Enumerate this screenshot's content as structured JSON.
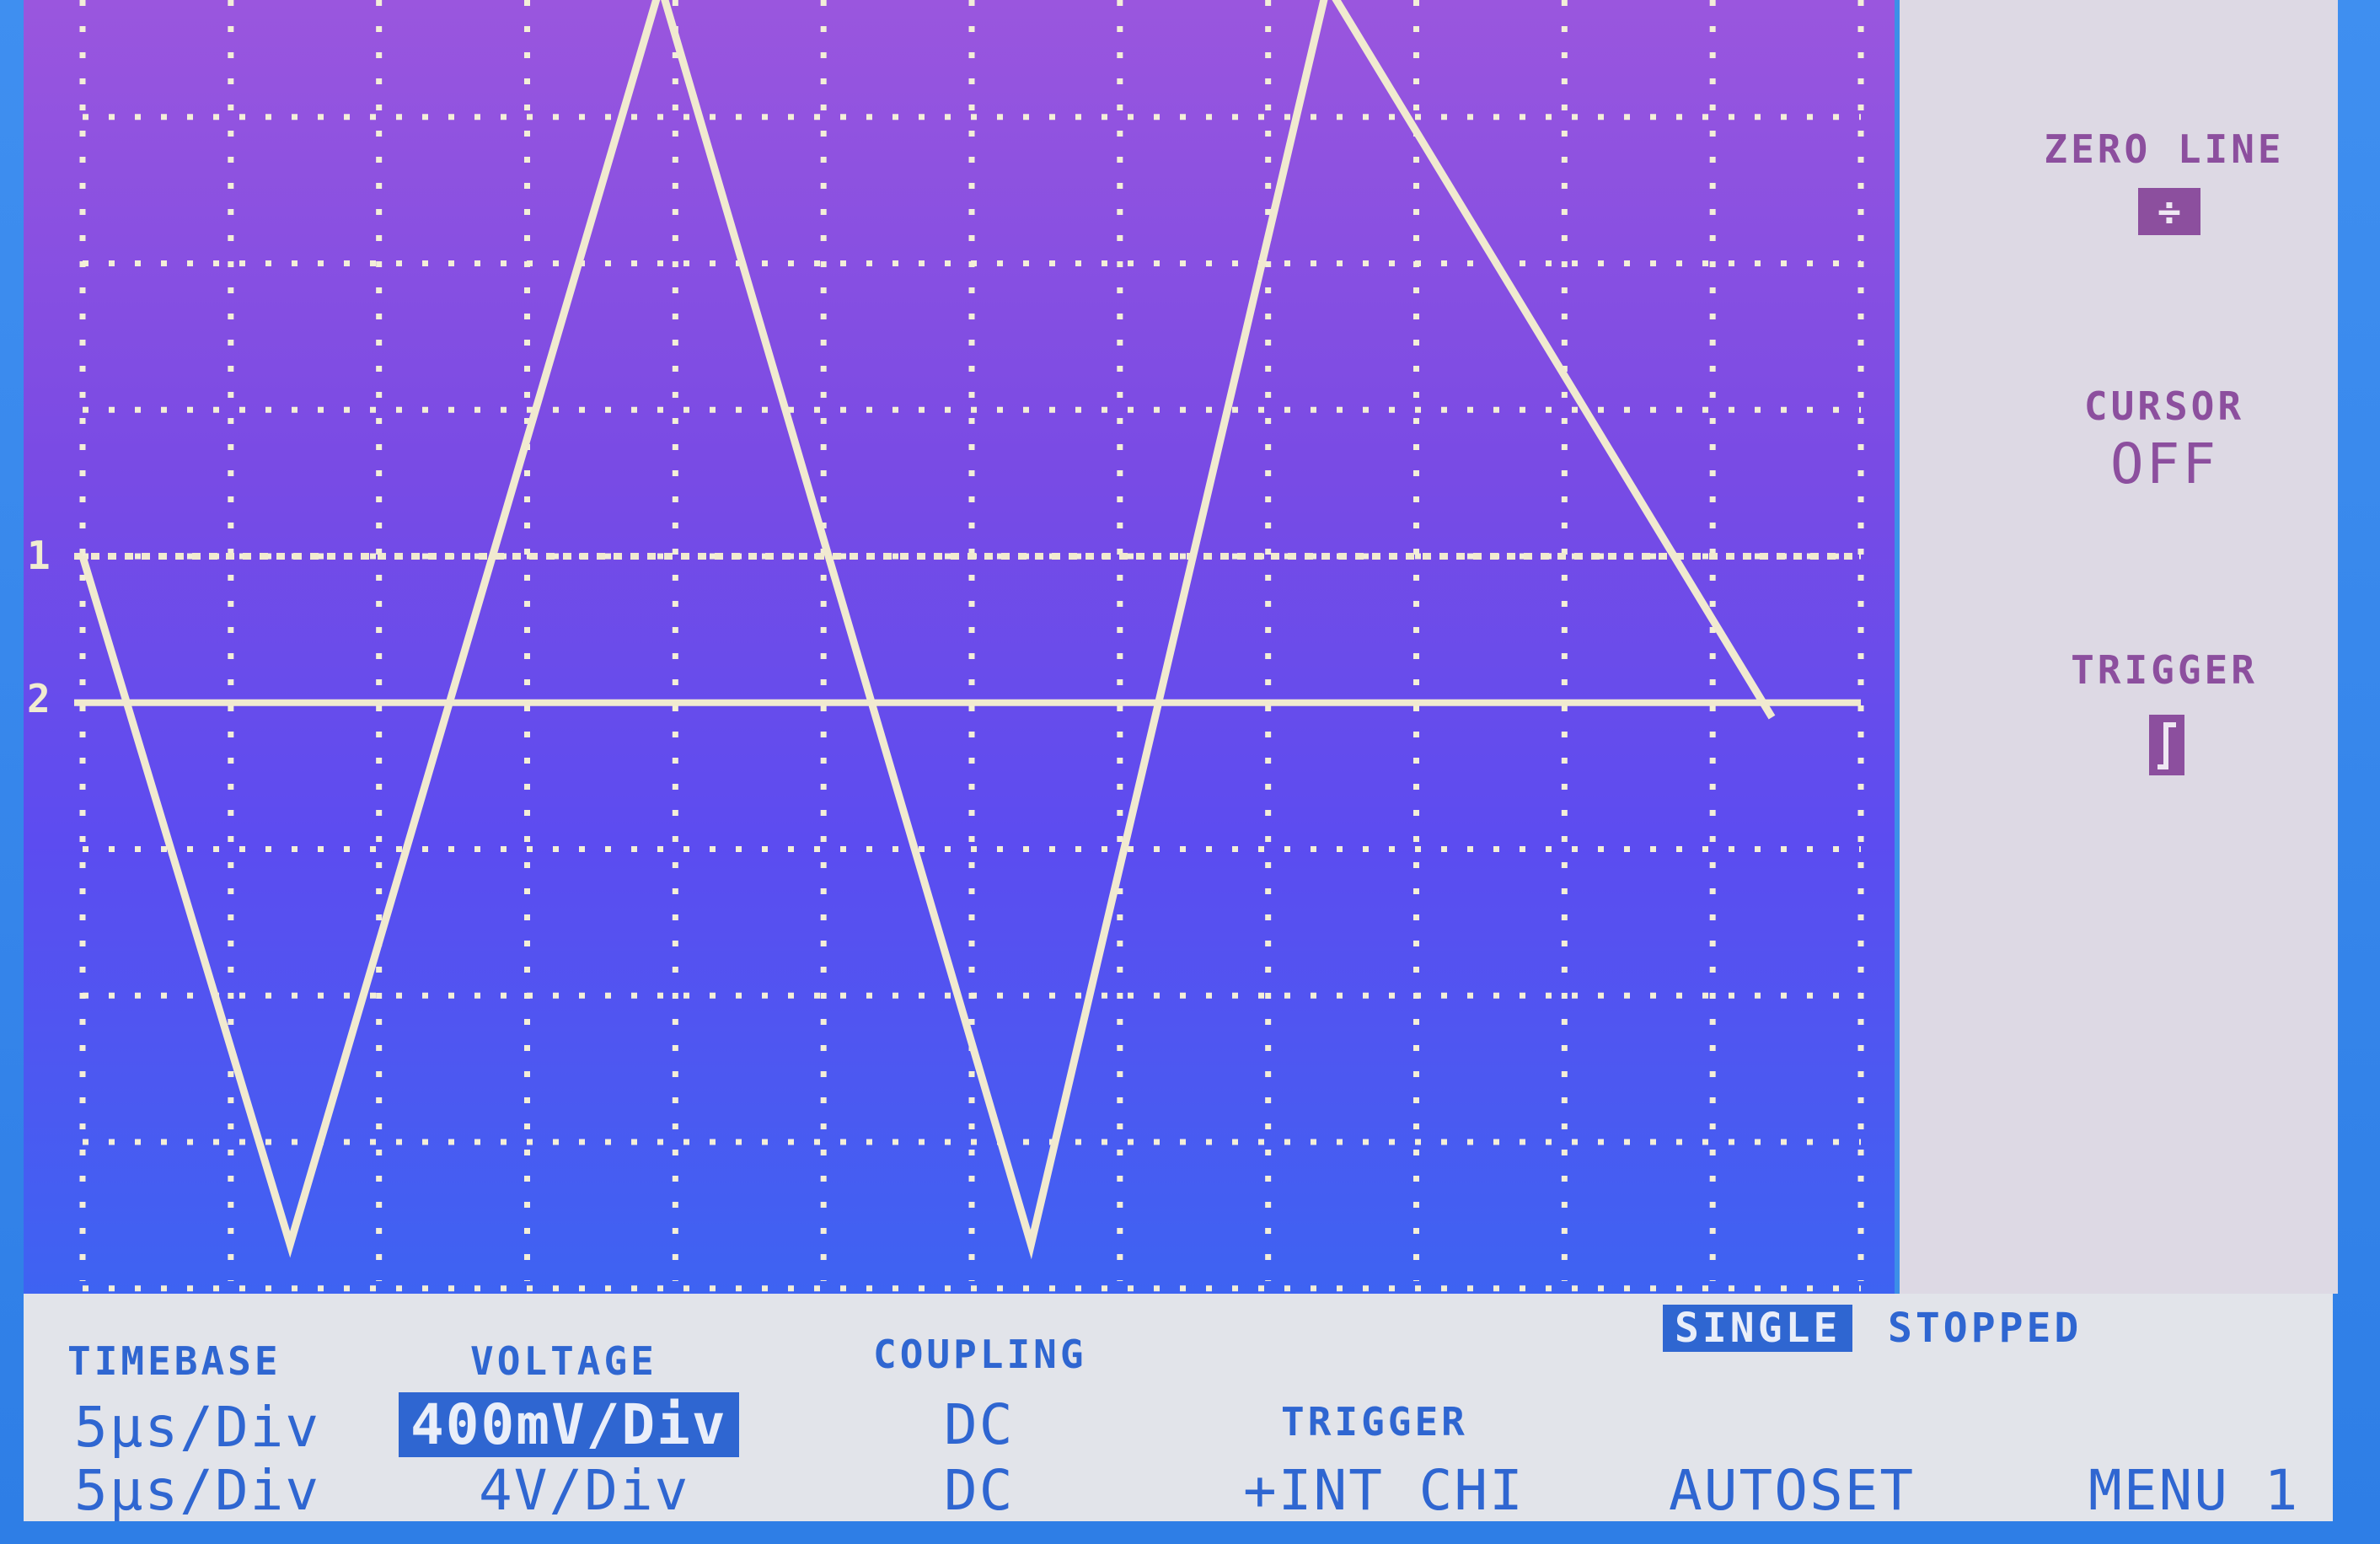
{
  "colors": {
    "trace": "#f1ead0",
    "grid": "#f3eed8",
    "side_text": "#8c4f9e",
    "bottom_text": "#2f66d1"
  },
  "chart_data": {
    "type": "line",
    "grid": true,
    "divisions": {
      "x": 12,
      "y": 8
    },
    "series": [
      {
        "values_x": [
          0,
          1.4,
          3.9,
          6.4,
          8.4,
          11.4
        ],
        "values_y": [
          0,
          -4.7,
          3.9,
          -4.7,
          3.9,
          -1.1
        ]
      }
    ],
    "reference_lines": [
      {
        "marker": "1",
        "y": 0.0,
        "style": "dotted"
      },
      {
        "marker": "2",
        "y": -1.0,
        "style": "solid"
      }
    ]
  },
  "side": {
    "zero_line": {
      "label": "ZERO LINE",
      "icon": "zero-line-icon"
    },
    "cursor": {
      "label": "CURSOR",
      "value": "OFF"
    },
    "trigger": {
      "label": "TRIGGER",
      "icon": "rising-edge-icon"
    }
  },
  "status": {
    "mode": "SINGLE",
    "state": "STOPPED"
  },
  "bottom": {
    "timebase": {
      "label": "TIMEBASE",
      "ch1": "5µs/Div",
      "ch2": "5µs/Div"
    },
    "voltage": {
      "label": "VOLTAGE",
      "ch1": "400mV/Div",
      "ch2": "4V/Div"
    },
    "coupling": {
      "label": "COUPLING",
      "ch1": "DC",
      "ch2": "DC"
    },
    "trigger": {
      "label": "TRIGGER",
      "value": "+INT CHI"
    },
    "autoset": "AUTOSET",
    "menu": "MENU 1"
  },
  "channels": {
    "ch1": "1",
    "ch2": "2"
  }
}
